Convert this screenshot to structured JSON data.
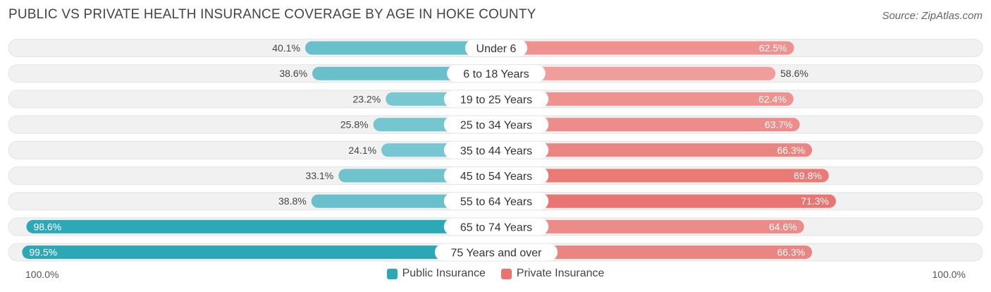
{
  "title": "PUBLIC VS PRIVATE HEALTH INSURANCE COVERAGE BY AGE IN HOKE COUNTY",
  "source": "Source: ZipAtlas.com",
  "colors": {
    "public_light": "#7cc8d2",
    "public_dark": "#2ba7b6",
    "private_light": "#f2a9a8",
    "private_dark": "#e8736f",
    "track": "#f1f1f1"
  },
  "chart_data": {
    "type": "bar",
    "orientation": "horizontal-diverging",
    "categories": [
      "Under 6",
      "6 to 18 Years",
      "19 to 25 Years",
      "25 to 34 Years",
      "35 to 44 Years",
      "45 to 54 Years",
      "55 to 64 Years",
      "65 to 74 Years",
      "75 Years and over"
    ],
    "series": [
      {
        "name": "Public Insurance",
        "values": [
          40.1,
          38.6,
          23.2,
          25.8,
          24.1,
          33.1,
          38.8,
          98.6,
          99.5
        ],
        "labels": [
          "40.1%",
          "38.6%",
          "23.2%",
          "25.8%",
          "24.1%",
          "33.1%",
          "38.8%",
          "98.6%",
          "99.5%"
        ]
      },
      {
        "name": "Private Insurance",
        "values": [
          62.5,
          58.6,
          62.4,
          63.7,
          66.3,
          69.8,
          71.3,
          64.6,
          66.3
        ],
        "labels": [
          "62.5%",
          "58.6%",
          "62.4%",
          "63.7%",
          "66.3%",
          "69.8%",
          "71.3%",
          "64.6%",
          "66.3%"
        ]
      }
    ],
    "xlim": [
      0,
      100
    ],
    "axis_left_label": "100.0%",
    "axis_right_label": "100.0%",
    "legend_position": "bottom-center"
  }
}
